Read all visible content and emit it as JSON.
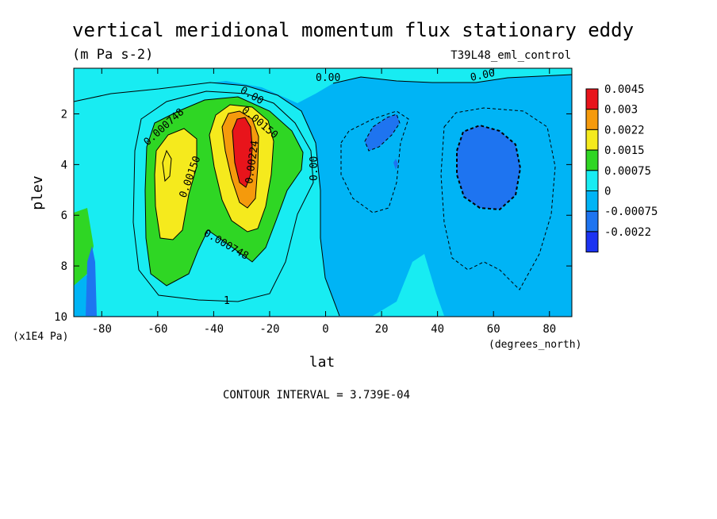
{
  "chart_data": {
    "type": "heatmap",
    "title": "vertical meridional momentum flux stationary eddy",
    "units": "(m Pa s-2)",
    "run_label": "T39L48_eml_control",
    "xlabel": "lat",
    "x_units": "(degrees_north)",
    "ylabel": "plev",
    "y_units": "(x1E4 Pa)",
    "xlim": [
      -90,
      88
    ],
    "ylim": [
      10,
      0.2
    ],
    "x_ticks": [
      "-80",
      "-60",
      "-40",
      "-20",
      "0",
      "20",
      "40",
      "60",
      "80"
    ],
    "y_ticks": [
      "2",
      "4",
      "6",
      "8",
      "10"
    ],
    "contour_interval_text": "CONTOUR INTERVAL = 3.739E-04",
    "colorbar": {
      "labels": [
        "0.0045",
        "0.003",
        "0.0022",
        "0.0015",
        "0.00075",
        "0",
        "-0.00075",
        "-0.0022"
      ],
      "colors": [
        "#e8141b",
        "#f59a0c",
        "#f5ea1d",
        "#2fd624",
        "#18ecf2",
        "#00b4f5",
        "#1e74f0",
        "#1c33f2"
      ]
    },
    "contour_labels": [
      "0.00",
      "0.00",
      "0.00",
      "0.00",
      "0.000748",
      "0.00150",
      "0.000748",
      "0.00150",
      "0.00224",
      "1"
    ],
    "regions": [
      {
        "name": "sh-tropics-positive",
        "lat_range": [
          -88,
          -3
        ],
        "plev_range": [
          1.5,
          9.5
        ],
        "level": 0.00075
      },
      {
        "name": "sh-west-maximum",
        "lat": -55,
        "plev": 4.5,
        "value": 0.0018
      },
      {
        "name": "sh-east-maximum",
        "lat": -29,
        "plev": 3.0,
        "value": 0.0045
      },
      {
        "name": "nh-negative-cell-1",
        "lat": 21,
        "plev": 3.0,
        "value": -0.00075
      },
      {
        "name": "nh-negative-cell-2",
        "lat": 57,
        "plev": 4.3,
        "value": -0.00075
      }
    ]
  }
}
